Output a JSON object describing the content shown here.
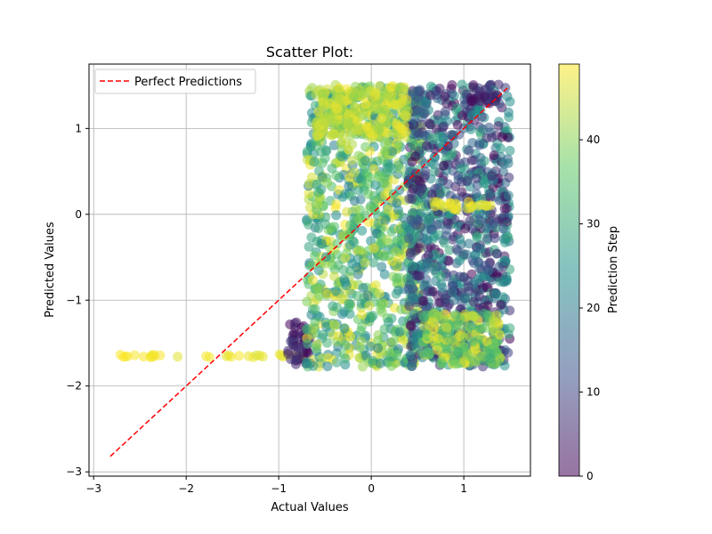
{
  "chart_data": {
    "type": "scatter",
    "title": "Scatter Plot:",
    "xlabel": "Actual Values",
    "ylabel": "Predicted Values",
    "xlim": [
      -3.05,
      1.72
    ],
    "ylim": [
      -3.05,
      1.75
    ],
    "xticks": [
      -3,
      -2,
      -1,
      0,
      1
    ],
    "yticks": [
      -3,
      -2,
      -1,
      0,
      1
    ],
    "xtick_labels": [
      "−3",
      "−2",
      "−1",
      "0",
      "1"
    ],
    "ytick_labels": [
      "−3",
      "−2",
      "−1",
      "0",
      "1"
    ],
    "grid": true,
    "legend": {
      "placement": "top-left",
      "entries": [
        "Perfect Predictions"
      ]
    },
    "reference_line": {
      "name": "Perfect Predictions",
      "style": "dashed",
      "color": "#ff0000",
      "x": [
        -2.82,
        1.47
      ],
      "y": [
        -2.82,
        1.47
      ]
    },
    "colorbar": {
      "label": "Prediction Step",
      "range": [
        0,
        49
      ],
      "ticks": [
        0,
        10,
        20,
        30,
        40
      ],
      "tick_labels": [
        "0",
        "10",
        "20",
        "30",
        "40"
      ],
      "colormap": "viridis",
      "alpha": 0.5
    },
    "series": [
      {
        "regions": [
          {
            "x": [
              -2.8,
              -2.28
            ],
            "y": [
              -1.67,
              -1.63
            ],
            "step": [
              48,
              49
            ]
          },
          {
            "x": [
              -2.1,
              -0.7
            ],
            "y": [
              -1.67,
              -1.63
            ],
            "step": [
              46,
              49
            ]
          },
          {
            "x": [
              -0.9,
              -0.65
            ],
            "y": [
              -1.75,
              -1.25
            ],
            "step": [
              0,
              8
            ]
          },
          {
            "x": [
              -0.7,
              0.55
            ],
            "y": [
              -1.78,
              1.52
            ],
            "step": [
              20,
              49
            ]
          },
          {
            "x": [
              0.4,
              1.5
            ],
            "y": [
              -1.78,
              1.52
            ],
            "step": [
              0,
              30
            ]
          },
          {
            "x": [
              0.55,
              1.4
            ],
            "y": [
              -1.75,
              -1.15
            ],
            "step": [
              30,
              49
            ]
          },
          {
            "x": [
              0.6,
              1.3
            ],
            "y": [
              0.05,
              0.15
            ],
            "step": [
              46,
              49
            ]
          },
          {
            "x": [
              1.05,
              1.4
            ],
            "y": [
              1.3,
              1.5
            ],
            "step": [
              0,
              12
            ]
          },
          {
            "x": [
              -0.6,
              0.4
            ],
            "y": [
              0.9,
              1.5
            ],
            "step": [
              40,
              49
            ]
          }
        ]
      }
    ]
  }
}
